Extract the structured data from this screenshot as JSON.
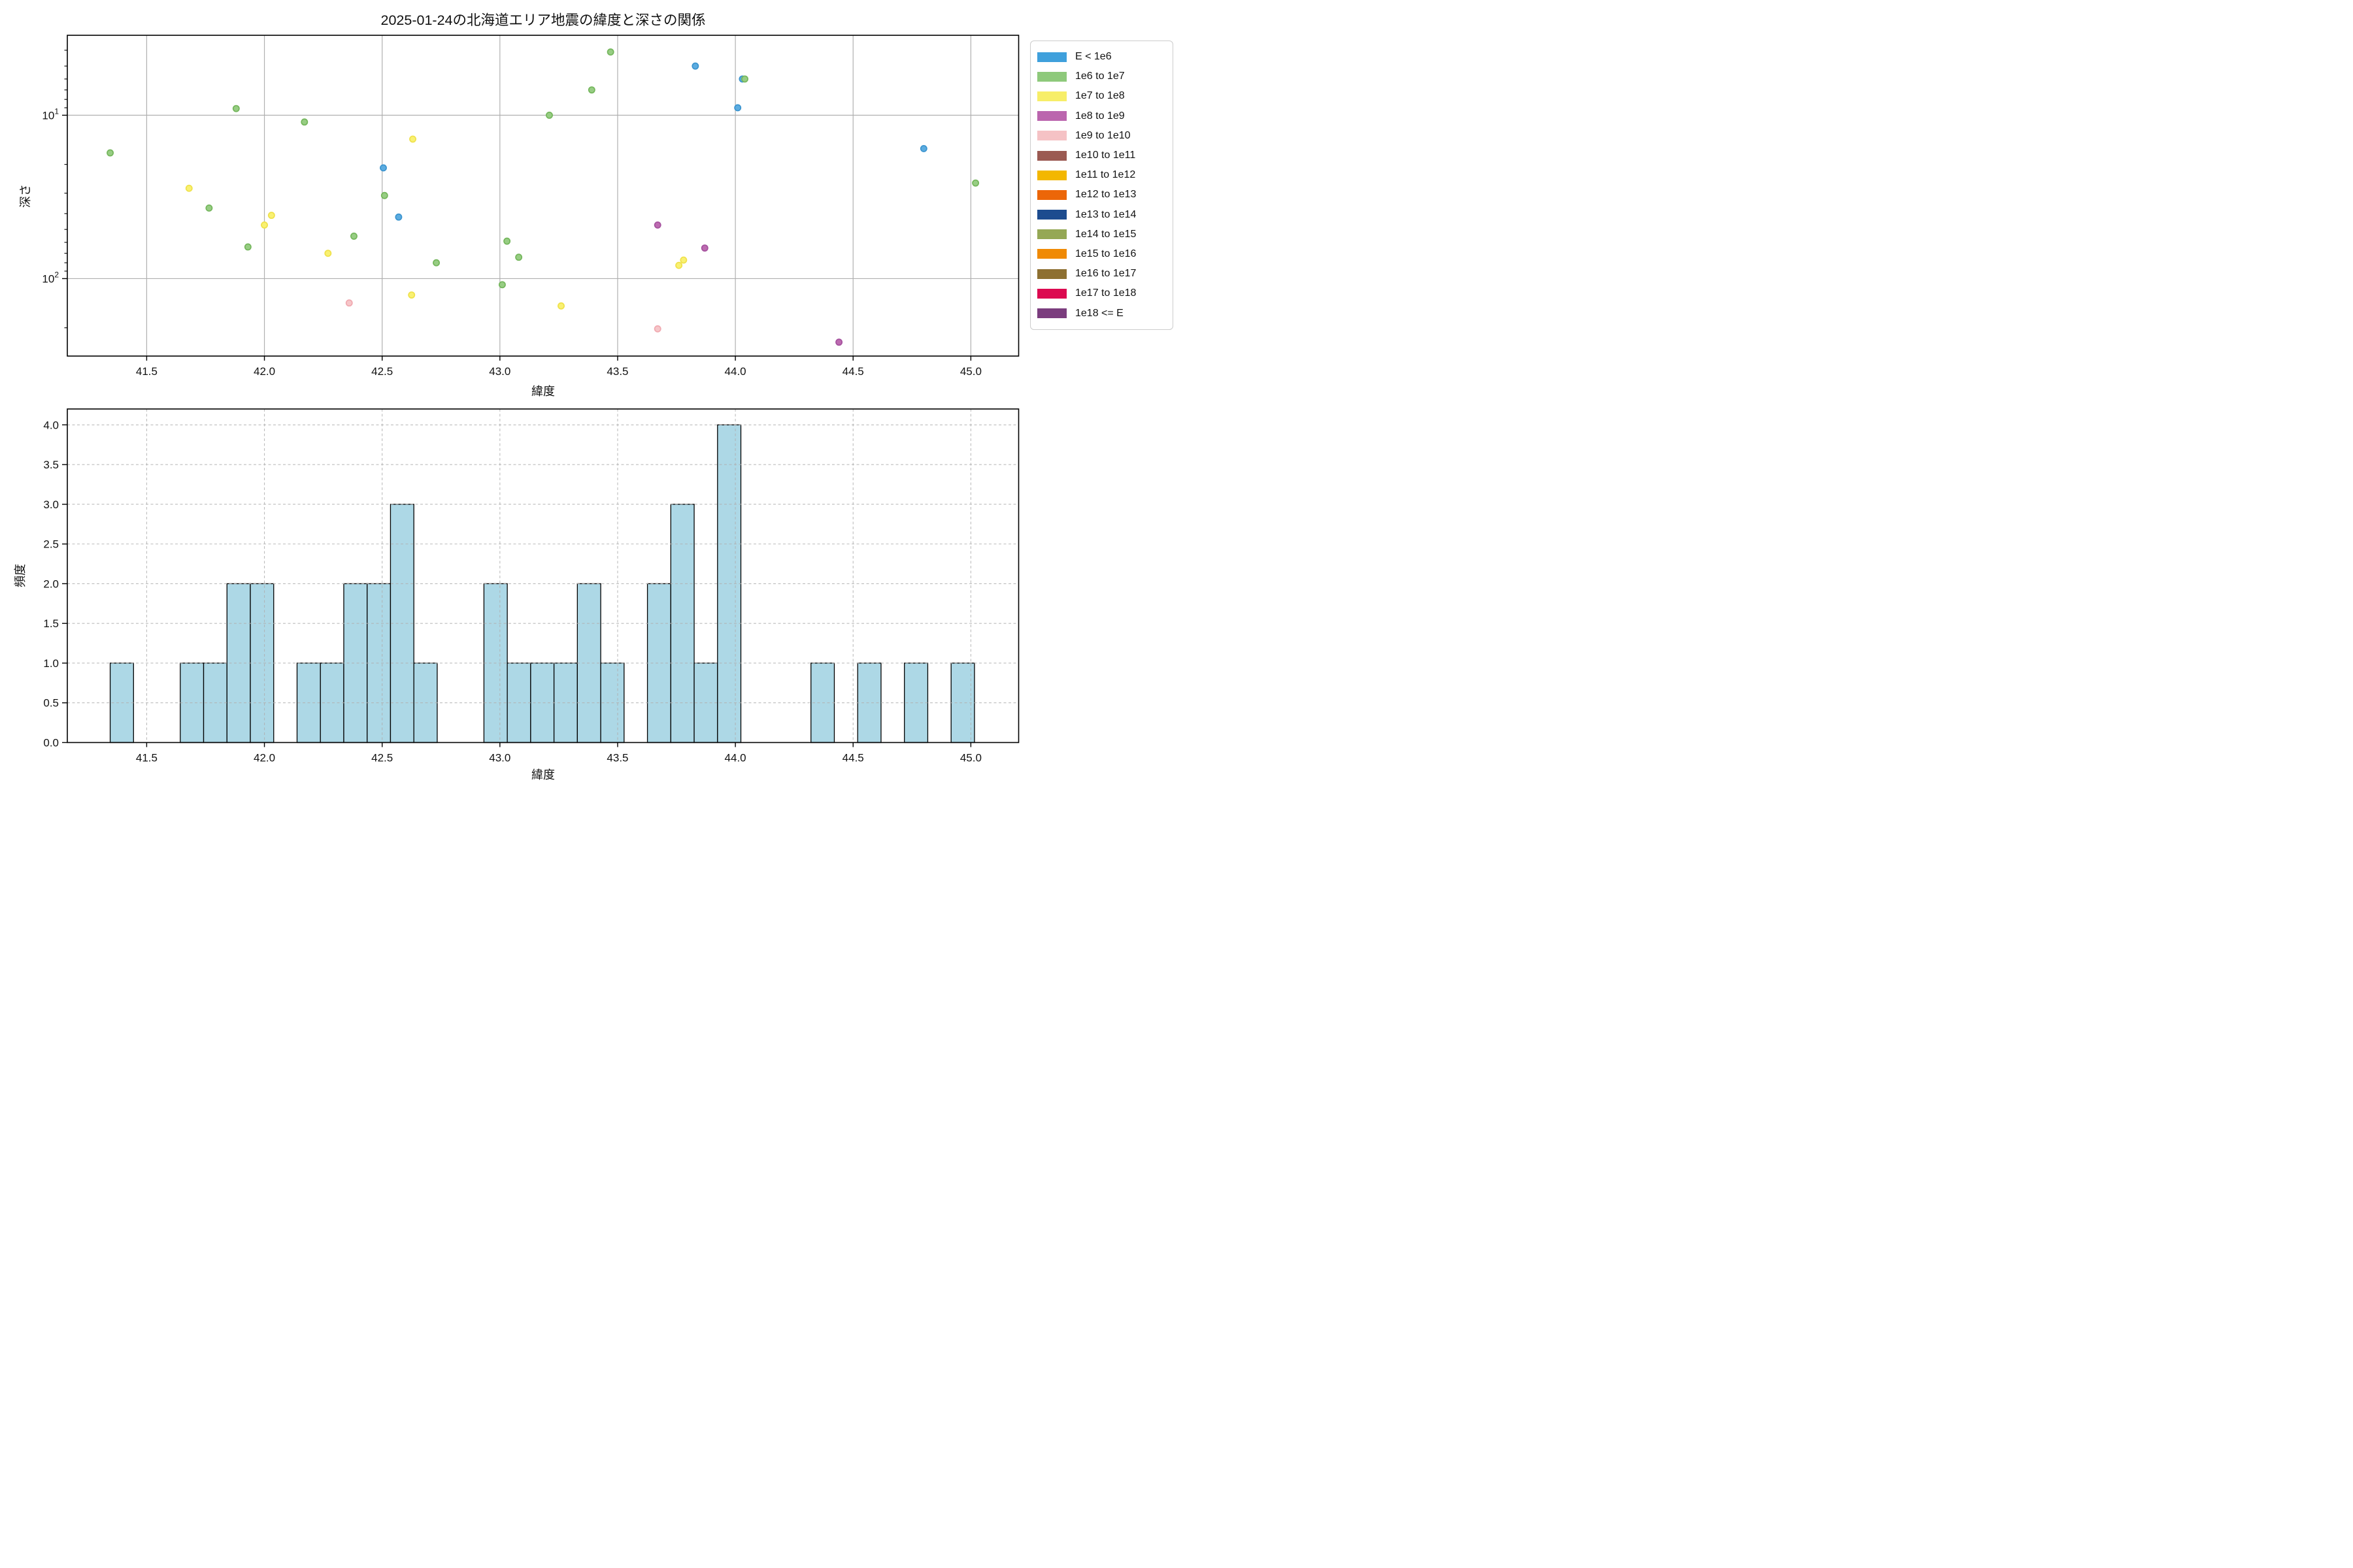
{
  "title": "2025-01-24の北海道エリア地震の緯度と深さの関係",
  "chart_data": [
    {
      "type": "scatter",
      "title": "2025-01-24の北海道エリア地震の緯度と深さの関係",
      "xlabel": "緯度",
      "ylabel": "深さ",
      "x_range": [
        41.163,
        45.203
      ],
      "y_scale": "log",
      "y_inverted": true,
      "y_range": [
        3.24,
        298
      ],
      "xticks": [
        41.5,
        42.0,
        42.5,
        43.0,
        43.5,
        44.0,
        44.5,
        45.0
      ],
      "yticks_log": [
        {
          "mantissa": "10",
          "exp": "1",
          "value": 10
        },
        {
          "mantissa": "10",
          "exp": "2",
          "value": 100
        }
      ],
      "y_minor_ticks": [
        4,
        5,
        6,
        7,
        8,
        9,
        20,
        30,
        40,
        50,
        60,
        70,
        80,
        90,
        200
      ],
      "grid": "solid",
      "series": [
        {
          "name": "E < 1e6",
          "edge": "#3B94CF",
          "fill": "#5CACE0",
          "points": [
            [
              42.505,
              21
            ],
            [
              42.57,
              42
            ],
            [
              43.83,
              5.0
            ],
            [
              44.01,
              9.0
            ],
            [
              44.03,
              6.0
            ],
            [
              44.8,
              16
            ]
          ]
        },
        {
          "name": "1e6 to 1e7",
          "edge": "#74B65C",
          "fill": "#97CD83",
          "points": [
            [
              41.345,
              17
            ],
            [
              41.765,
              37
            ],
            [
              41.88,
              9.1
            ],
            [
              41.93,
              64
            ],
            [
              42.17,
              11
            ],
            [
              42.38,
              55
            ],
            [
              42.51,
              31
            ],
            [
              42.73,
              80
            ],
            [
              43.01,
              109
            ],
            [
              43.03,
              59
            ],
            [
              43.08,
              74
            ],
            [
              43.21,
              10
            ],
            [
              43.39,
              7.0
            ],
            [
              43.47,
              4.1
            ],
            [
              44.04,
              6.0
            ],
            [
              45.02,
              26
            ]
          ]
        },
        {
          "name": "1e7 to 1e8",
          "edge": "#EFE14A",
          "fill": "#F9F172",
          "points": [
            [
              41.68,
              28
            ],
            [
              42.0,
              47
            ],
            [
              42.03,
              41
            ],
            [
              42.27,
              70
            ],
            [
              42.625,
              126
            ],
            [
              42.63,
              14
            ],
            [
              43.26,
              147
            ],
            [
              43.76,
              83
            ],
            [
              43.78,
              77
            ]
          ]
        },
        {
          "name": "1e8 to 1e9",
          "edge": "#A5519E",
          "fill": "#BC6BB0",
          "points": [
            [
              43.67,
              47
            ],
            [
              43.87,
              65
            ],
            [
              44.44,
              245
            ]
          ]
        },
        {
          "name": "1e9 to 1e10",
          "edge": "#F0A9B0",
          "fill": "#F6C6C9",
          "points": [
            [
              42.36,
              141
            ],
            [
              43.67,
              203
            ]
          ]
        }
      ]
    },
    {
      "type": "bar",
      "xlabel": "緯度",
      "ylabel": "頻度",
      "x_range": [
        41.163,
        45.203
      ],
      "ylim": [
        0,
        4.2
      ],
      "xticks": [
        41.5,
        42.0,
        42.5,
        43.0,
        43.5,
        44.0,
        44.5,
        45.0
      ],
      "yticks": [
        0.0,
        0.5,
        1.0,
        1.5,
        2.0,
        2.5,
        3.0,
        3.5,
        4.0
      ],
      "grid": "dashed",
      "bar_fill": "#ADD8E6",
      "bar_edge": "#000000",
      "bin_start": 41.345,
      "bin_width": 0.0992,
      "counts": [
        1,
        0,
        0,
        1,
        1,
        2,
        2,
        0,
        1,
        1,
        2,
        2,
        3,
        1,
        0,
        0,
        2,
        1,
        1,
        1,
        2,
        1,
        0,
        2,
        3,
        1,
        4,
        0,
        0,
        0,
        1,
        0,
        1,
        0,
        1,
        0,
        1
      ]
    }
  ],
  "legend": {
    "entries": [
      {
        "label": "E < 1e6",
        "color": "#3FA0DC"
      },
      {
        "label": "1e6 to 1e7",
        "color": "#8EC97B"
      },
      {
        "label": "1e7 to 1e8",
        "color": "#F7EE68"
      },
      {
        "label": "1e8 to 1e9",
        "color": "#BB65AE"
      },
      {
        "label": "1e9 to 1e10",
        "color": "#F5C2C5"
      },
      {
        "label": "1e10 to 1e11",
        "color": "#9B5A52"
      },
      {
        "label": "1e11 to 1e12",
        "color": "#F3B700"
      },
      {
        "label": "1e12 to 1e13",
        "color": "#EC6608"
      },
      {
        "label": "1e13 to 1e14",
        "color": "#1D4C8F"
      },
      {
        "label": "1e14 to 1e15",
        "color": "#95A855"
      },
      {
        "label": "1e15 to 1e16",
        "color": "#F08A05"
      },
      {
        "label": "1e16 to 1e17",
        "color": "#8E7031"
      },
      {
        "label": "1e17 to 1e18",
        "color": "#DC0A50"
      },
      {
        "label": "1e18 <= E",
        "color": "#7B3D7E"
      }
    ]
  },
  "style": {
    "grid_color": "#b0b0b0",
    "spine_color": "#000000",
    "text_color": "#111111"
  }
}
